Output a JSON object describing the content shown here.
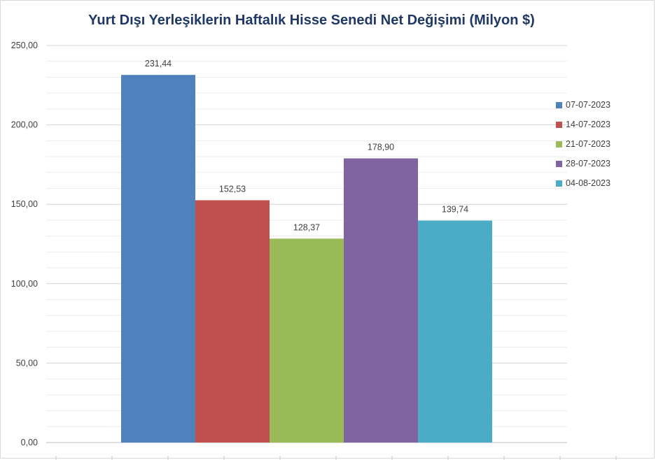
{
  "chart_data": {
    "type": "bar",
    "title": "Yurt Dışı Yerleşiklerin Haftalık Hisse Senedi Net Değişimi (Milyon $)",
    "xlabel": "",
    "ylabel": "",
    "ylim": [
      0,
      250
    ],
    "y_ticks": [
      "0,00",
      "50,00",
      "100,00",
      "150,00",
      "200,00",
      "250,00"
    ],
    "grid": true,
    "legend_position": "right",
    "series": [
      {
        "name": "07-07-2023",
        "value": 231.44,
        "label": "231,44",
        "color": "#4f81bd"
      },
      {
        "name": "14-07-2023",
        "value": 152.53,
        "label": "152,53",
        "color": "#c0504d"
      },
      {
        "name": "21-07-2023",
        "value": 128.37,
        "label": "128,37",
        "color": "#9bbb59"
      },
      {
        "name": "28-07-2023",
        "value": 178.9,
        "label": "178,90",
        "color": "#8064a2"
      },
      {
        "name": "04-08-2023",
        "value": 139.74,
        "label": "139,74",
        "color": "#4bacc6"
      }
    ]
  }
}
